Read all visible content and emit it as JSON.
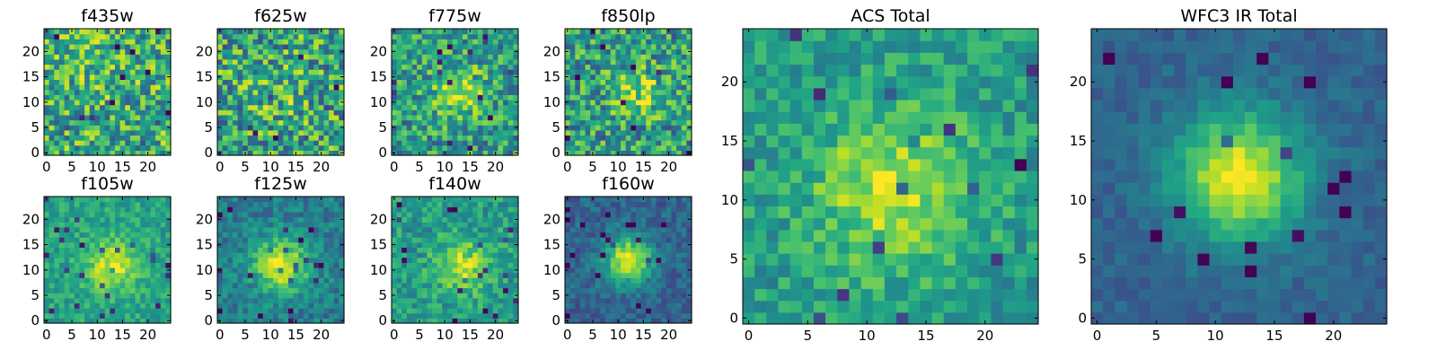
{
  "chart_data": [
    {
      "type": "heatmap",
      "title": "f435w",
      "nx": 25,
      "ny": 25,
      "xlim": [
        0,
        24
      ],
      "ylim": [
        0,
        24
      ],
      "x_ticks": [
        0,
        5,
        10,
        15,
        20
      ],
      "y_ticks": [
        0,
        5,
        10,
        15,
        20
      ],
      "colormap": "viridis",
      "peak": [
        10,
        17
      ],
      "sigma": 5,
      "noise": 0.32,
      "base": 0.62,
      "amp": 0.06,
      "seed": 11
    },
    {
      "type": "heatmap",
      "title": "f625w",
      "nx": 25,
      "ny": 25,
      "xlim": [
        0,
        24
      ],
      "ylim": [
        0,
        24
      ],
      "x_ticks": [
        0,
        5,
        10,
        15,
        20
      ],
      "y_ticks": [
        0,
        5,
        10,
        15,
        20
      ],
      "colormap": "viridis",
      "peak": [
        12,
        12
      ],
      "sigma": 5,
      "noise": 0.34,
      "base": 0.58,
      "amp": 0.08,
      "seed": 23
    },
    {
      "type": "heatmap",
      "title": "f775w",
      "nx": 25,
      "ny": 25,
      "xlim": [
        0,
        24
      ],
      "ylim": [
        0,
        24
      ],
      "x_ticks": [
        0,
        5,
        10,
        15,
        20
      ],
      "y_ticks": [
        0,
        5,
        10,
        15,
        20
      ],
      "colormap": "viridis",
      "peak": [
        13,
        12
      ],
      "sigma": 3.5,
      "noise": 0.27,
      "base": 0.55,
      "amp": 0.33,
      "seed": 37
    },
    {
      "type": "heatmap",
      "title": "f850lp",
      "nx": 25,
      "ny": 25,
      "xlim": [
        0,
        24
      ],
      "ylim": [
        0,
        24
      ],
      "x_ticks": [
        0,
        5,
        10,
        15,
        20
      ],
      "y_ticks": [
        0,
        5,
        10,
        15,
        20
      ],
      "colormap": "viridis",
      "peak": [
        14,
        12
      ],
      "sigma": 3.5,
      "noise": 0.3,
      "base": 0.55,
      "amp": 0.28,
      "seed": 41
    },
    {
      "type": "heatmap",
      "title": "f105w",
      "nx": 25,
      "ny": 25,
      "xlim": [
        0,
        24
      ],
      "ylim": [
        0,
        24
      ],
      "x_ticks": [
        0,
        5,
        10,
        15,
        20
      ],
      "y_ticks": [
        0,
        5,
        10,
        15,
        20
      ],
      "colormap": "viridis",
      "peak": [
        13,
        11
      ],
      "sigma": 3.5,
      "noise": 0.13,
      "base": 0.58,
      "amp": 0.36,
      "seed": 53
    },
    {
      "type": "heatmap",
      "title": "f125w",
      "nx": 25,
      "ny": 25,
      "xlim": [
        0,
        24
      ],
      "ylim": [
        0,
        24
      ],
      "x_ticks": [
        0,
        5,
        10,
        15,
        20
      ],
      "y_ticks": [
        0,
        5,
        10,
        15,
        20
      ],
      "colormap": "viridis",
      "peak": [
        12,
        11
      ],
      "sigma": 3.8,
      "noise": 0.14,
      "base": 0.42,
      "amp": 0.55,
      "seed": 67
    },
    {
      "type": "heatmap",
      "title": "f140w",
      "nx": 25,
      "ny": 25,
      "xlim": [
        0,
        24
      ],
      "ylim": [
        0,
        24
      ],
      "x_ticks": [
        0,
        5,
        10,
        15,
        20
      ],
      "y_ticks": [
        0,
        5,
        10,
        15,
        20
      ],
      "colormap": "viridis",
      "peak": [
        13,
        11
      ],
      "sigma": 3.5,
      "noise": 0.17,
      "base": 0.55,
      "amp": 0.36,
      "seed": 71
    },
    {
      "type": "heatmap",
      "title": "f160w",
      "nx": 25,
      "ny": 25,
      "xlim": [
        0,
        24
      ],
      "ylim": [
        0,
        24
      ],
      "x_ticks": [
        0,
        5,
        10,
        15,
        20
      ],
      "y_ticks": [
        0,
        5,
        10,
        15,
        20
      ],
      "colormap": "viridis",
      "peak": [
        12,
        12
      ],
      "sigma": 3.2,
      "noise": 0.12,
      "base": 0.32,
      "amp": 0.66,
      "seed": 83
    },
    {
      "type": "heatmap",
      "title": "ACS Total",
      "nx": 25,
      "ny": 25,
      "xlim": [
        0,
        24
      ],
      "ylim": [
        0,
        24
      ],
      "x_ticks": [
        0,
        5,
        10,
        15,
        20
      ],
      "y_ticks": [
        0,
        5,
        10,
        15,
        20
      ],
      "colormap": "viridis",
      "peak": [
        12,
        11
      ],
      "sigma": 4.5,
      "noise": 0.16,
      "base": 0.55,
      "amp": 0.36,
      "seed": 97
    },
    {
      "type": "heatmap",
      "title": "WFC3 IR Total",
      "nx": 25,
      "ny": 25,
      "xlim": [
        0,
        24
      ],
      "ylim": [
        0,
        24
      ],
      "x_ticks": [
        0,
        5,
        10,
        15,
        20
      ],
      "y_ticks": [
        0,
        5,
        10,
        15,
        20
      ],
      "colormap": "viridis",
      "peak": [
        12,
        12
      ],
      "sigma": 3.8,
      "noise": 0.07,
      "base": 0.32,
      "amp": 0.66,
      "seed": 101
    }
  ]
}
